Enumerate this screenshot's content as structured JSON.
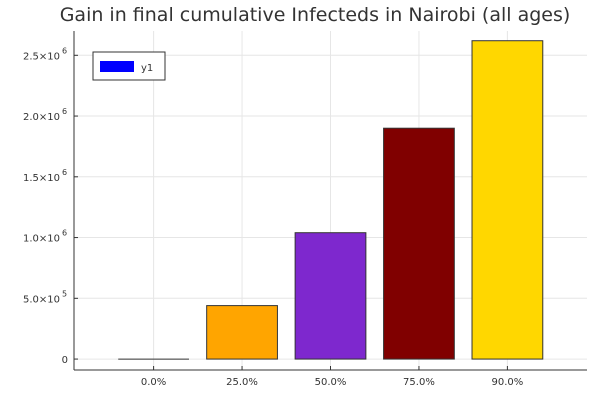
{
  "chart_data": {
    "type": "bar",
    "title": "Gain in final cumulative Infecteds in Nairobi (all ages)",
    "xlabel": "",
    "ylabel": "",
    "categories": [
      "0.0%",
      "25.0%",
      "50.0%",
      "75.0%",
      "90.0%"
    ],
    "series": [
      {
        "name": "y1",
        "values": [
          0,
          440000,
          1040000,
          1900000,
          2620000
        ]
      }
    ],
    "bar_colors": [
      "#000000",
      "#FFA500",
      "#7E28CE",
      "#800000",
      "#FFD700"
    ],
    "legend": {
      "position": "top-left",
      "swatch_color": "#0000FF",
      "label": "y1"
    },
    "ylim": [
      -90000,
      2700000
    ],
    "yticks": [
      {
        "value": 0,
        "label": "0"
      },
      {
        "value": 500000,
        "label": "5.0×10",
        "exp": "5"
      },
      {
        "value": 1000000,
        "label": "1.0×10",
        "exp": "6"
      },
      {
        "value": 1500000,
        "label": "1.5×10",
        "exp": "6"
      },
      {
        "value": 2000000,
        "label": "2.0×10",
        "exp": "6"
      },
      {
        "value": 2500000,
        "label": "2.5×10",
        "exp": "6"
      }
    ],
    "grid": true
  }
}
